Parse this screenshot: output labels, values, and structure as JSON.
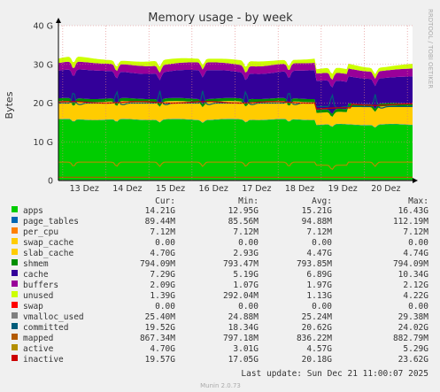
{
  "chart_data": {
    "type": "area",
    "title": "Memory usage - by week",
    "ylabel": "Bytes",
    "side_label": "RRDTOOL / TOBI OETIKER",
    "ylim": [
      0,
      40
    ],
    "y_ticks": [
      "0",
      "10 G",
      "20 G",
      "30 G",
      "40 G"
    ],
    "y_tick_values": [
      0,
      10,
      20,
      30,
      40
    ],
    "unit": "GiB",
    "categories": [
      "13 Dez",
      "14 Dez",
      "15 Dez",
      "16 Dez",
      "17 Dez",
      "18 Dez",
      "19 Dez",
      "20 Dez"
    ],
    "grid": true,
    "column_headers": [
      "Cur:",
      "Min:",
      "Avg:",
      "Max:"
    ],
    "series": [
      {
        "name": "apps",
        "color": "#00cc00",
        "stacked": true,
        "cur": "14.21G",
        "min": "12.95G",
        "avg": "15.21G",
        "max": "16.43G"
      },
      {
        "name": "page_tables",
        "color": "#0066b3",
        "stacked": true,
        "cur": "89.44M",
        "min": "85.56M",
        "avg": "94.88M",
        "max": "112.19M"
      },
      {
        "name": "per_cpu",
        "color": "#ff8000",
        "stacked": true,
        "cur": "7.12M",
        "min": "7.12M",
        "avg": "7.12M",
        "max": "7.12M"
      },
      {
        "name": "swap_cache",
        "color": "#ffcc00",
        "stacked": true,
        "cur": "0.00",
        "min": "0.00",
        "avg": "0.00",
        "max": "0.00"
      },
      {
        "name": "slab_cache",
        "color": "#ffcc00",
        "stacked": true,
        "cur": "4.70G",
        "min": "2.93G",
        "avg": "4.47G",
        "max": "4.74G"
      },
      {
        "name": "shmem",
        "color": "#008f00",
        "stacked": true,
        "cur": "794.09M",
        "min": "793.47M",
        "avg": "793.85M",
        "max": "794.09M"
      },
      {
        "name": "cache",
        "color": "#330099",
        "stacked": true,
        "cur": "7.29G",
        "min": "5.19G",
        "avg": "6.89G",
        "max": "10.34G"
      },
      {
        "name": "buffers",
        "color": "#990099",
        "stacked": true,
        "cur": "2.09G",
        "min": "1.07G",
        "avg": "1.97G",
        "max": "2.12G"
      },
      {
        "name": "unused",
        "color": "#ccff00",
        "stacked": true,
        "cur": "1.39G",
        "min": "292.04M",
        "avg": "1.13G",
        "max": "4.22G"
      },
      {
        "name": "swap",
        "color": "#ff0000",
        "stacked": true,
        "cur": "0.00",
        "min": "0.00",
        "avg": "0.00",
        "max": "0.00"
      },
      {
        "name": "vmalloc_used",
        "color": "#808080",
        "stacked": false,
        "cur": "25.40M",
        "min": "24.88M",
        "avg": "25.24M",
        "max": "29.38M"
      },
      {
        "name": "committed",
        "color": "#005c7a",
        "stacked": false,
        "cur": "19.52G",
        "min": "18.34G",
        "avg": "20.62G",
        "max": "24.02G"
      },
      {
        "name": "mapped",
        "color": "#b35a00",
        "stacked": false,
        "cur": "867.34M",
        "min": "797.18M",
        "avg": "836.22M",
        "max": "882.79M"
      },
      {
        "name": "active",
        "color": "#b38f00",
        "stacked": false,
        "cur": "4.70G",
        "min": "3.01G",
        "avg": "4.57G",
        "max": "5.29G"
      },
      {
        "name": "inactive",
        "color": "#cc0000",
        "stacked": false,
        "cur": "19.57G",
        "min": "17.05G",
        "avg": "20.18G",
        "max": "23.62G"
      }
    ]
  },
  "footer": {
    "last_update": "Last update:  Sun Dec 21 11:00:07 2025",
    "generator": "Munin 2.0.73"
  }
}
